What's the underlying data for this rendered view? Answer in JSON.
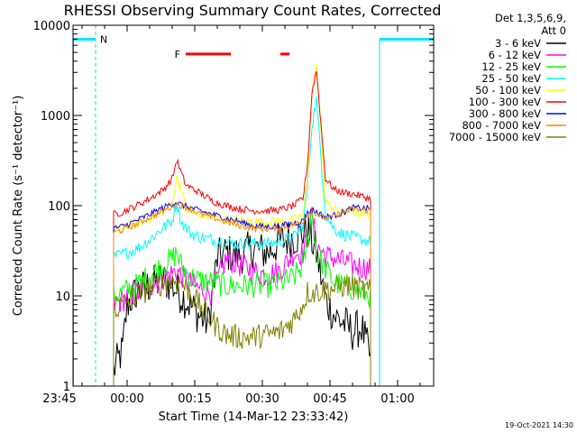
{
  "chart_data": {
    "type": "line",
    "title": "RHESSI Observing Summary Count Rates, Corrected",
    "xlabel": "Start Time (14-Mar-12 23:33:42)",
    "ylabel": "Corrected Count Rate (s⁻¹ detector⁻¹)",
    "yscale": "log",
    "ylim": [
      1,
      10000
    ],
    "xlim_minutes": [
      -12,
      68
    ],
    "x_tick_labels": [
      "23:45",
      "00:00",
      "00:15",
      "00:30",
      "00:45",
      "01:00"
    ],
    "x_tick_minutes": [
      -15,
      0,
      15,
      30,
      45,
      60
    ],
    "y_tick_labels": [
      "1",
      "10",
      "100",
      "1000",
      "10000"
    ],
    "y_tick_values": [
      1,
      10,
      100,
      1000,
      10000
    ],
    "legend_header": [
      "Det 1,3,5,6,9,",
      "Att 0"
    ],
    "timestamp": "19-Oct-2021 14:30",
    "marker_N": "N",
    "marker_F": "F",
    "night_intervals_minutes": [
      [
        -12,
        -7
      ],
      [
        56,
        68
      ]
    ],
    "flare_bars_minutes": [
      [
        13,
        23
      ],
      [
        34,
        36
      ]
    ],
    "data_start_minutes": -3,
    "data_end_minutes": 54,
    "series": [
      {
        "name": "3 - 6 keV",
        "color": "#000000",
        "points": [
          [
            -3,
            1.5
          ],
          [
            -1,
            2.5
          ],
          [
            0,
            8
          ],
          [
            2,
            11
          ],
          [
            5,
            13
          ],
          [
            8,
            15
          ],
          [
            10,
            13
          ],
          [
            13,
            9
          ],
          [
            16,
            6
          ],
          [
            18,
            5
          ],
          [
            20,
            26
          ],
          [
            22,
            30
          ],
          [
            25,
            28
          ],
          [
            28,
            34
          ],
          [
            31,
            30
          ],
          [
            34,
            40
          ],
          [
            38,
            46
          ],
          [
            40,
            55
          ],
          [
            42,
            30
          ],
          [
            44,
            9
          ],
          [
            46,
            6
          ],
          [
            48,
            5
          ],
          [
            50,
            4
          ],
          [
            52,
            4.5
          ],
          [
            54,
            2
          ]
        ]
      },
      {
        "name": "6 - 12 keV",
        "color": "#ff00ff",
        "points": [
          [
            -3,
            8
          ],
          [
            -1,
            9
          ],
          [
            2,
            10.5
          ],
          [
            5,
            13
          ],
          [
            8,
            16
          ],
          [
            10,
            18
          ],
          [
            11,
            19
          ],
          [
            13,
            15
          ],
          [
            16,
            12
          ],
          [
            19,
            11
          ],
          [
            22,
            26
          ],
          [
            25,
            22
          ],
          [
            28,
            19
          ],
          [
            31,
            17
          ],
          [
            34,
            19
          ],
          [
            37,
            30
          ],
          [
            39,
            30
          ],
          [
            40,
            42
          ],
          [
            41,
            80
          ],
          [
            42,
            36
          ],
          [
            44,
            28
          ],
          [
            46,
            26
          ],
          [
            48,
            24
          ],
          [
            50,
            22
          ],
          [
            54,
            20
          ]
        ]
      },
      {
        "name": "12 - 25 keV",
        "color": "#00ff00",
        "points": [
          [
            -3,
            10
          ],
          [
            -1,
            11
          ],
          [
            2,
            13
          ],
          [
            5,
            17
          ],
          [
            8,
            22
          ],
          [
            10,
            26
          ],
          [
            11,
            30
          ],
          [
            12,
            22
          ],
          [
            14,
            16
          ],
          [
            16,
            15
          ],
          [
            19,
            14
          ],
          [
            22,
            13
          ],
          [
            25,
            13
          ],
          [
            28,
            13
          ],
          [
            31,
            13
          ],
          [
            34,
            14
          ],
          [
            37,
            16
          ],
          [
            39,
            22
          ],
          [
            40,
            40
          ],
          [
            41,
            85
          ],
          [
            42,
            30
          ],
          [
            44,
            20
          ],
          [
            46,
            14
          ],
          [
            48,
            13
          ],
          [
            50,
            12
          ],
          [
            54,
            10
          ]
        ]
      },
      {
        "name": "25 - 50 keV",
        "color": "#00ffff",
        "points": [
          [
            -3,
            27
          ],
          [
            -1,
            29
          ],
          [
            2,
            33
          ],
          [
            5,
            42
          ],
          [
            7,
            52
          ],
          [
            9,
            62
          ],
          [
            10,
            68
          ],
          [
            11,
            110
          ],
          [
            12,
            66
          ],
          [
            14,
            50
          ],
          [
            16,
            45
          ],
          [
            19,
            42
          ],
          [
            22,
            39
          ],
          [
            25,
            38
          ],
          [
            28,
            38
          ],
          [
            31,
            38
          ],
          [
            34,
            40
          ],
          [
            37,
            45
          ],
          [
            39,
            60
          ],
          [
            40,
            160
          ],
          [
            41,
            800
          ],
          [
            42,
            1500
          ],
          [
            43,
            350
          ],
          [
            44,
            80
          ],
          [
            46,
            55
          ],
          [
            48,
            48
          ],
          [
            50,
            45
          ],
          [
            54,
            40
          ]
        ]
      },
      {
        "name": "50 - 100 keV",
        "color": "#ffff00",
        "points": [
          [
            -3,
            53
          ],
          [
            -1,
            56
          ],
          [
            2,
            63
          ],
          [
            5,
            72
          ],
          [
            8,
            85
          ],
          [
            10,
            110
          ],
          [
            11,
            200
          ],
          [
            12,
            160
          ],
          [
            13,
            90
          ],
          [
            16,
            80
          ],
          [
            19,
            74
          ],
          [
            22,
            70
          ],
          [
            25,
            68
          ],
          [
            28,
            66
          ],
          [
            31,
            66
          ],
          [
            34,
            67
          ],
          [
            37,
            70
          ],
          [
            39,
            80
          ],
          [
            40,
            200
          ],
          [
            41,
            1800
          ],
          [
            42,
            3600
          ],
          [
            43,
            700
          ],
          [
            44,
            110
          ],
          [
            46,
            90
          ],
          [
            48,
            85
          ],
          [
            50,
            85
          ],
          [
            54,
            82
          ]
        ]
      },
      {
        "name": "100 - 300 keV",
        "color": "#ff0000",
        "points": [
          [
            -3,
            80
          ],
          [
            -1,
            85
          ],
          [
            2,
            100
          ],
          [
            5,
            120
          ],
          [
            8,
            150
          ],
          [
            10,
            200
          ],
          [
            11,
            320
          ],
          [
            12,
            230
          ],
          [
            13,
            170
          ],
          [
            16,
            140
          ],
          [
            19,
            112
          ],
          [
            22,
            100
          ],
          [
            25,
            92
          ],
          [
            28,
            88
          ],
          [
            31,
            88
          ],
          [
            34,
            90
          ],
          [
            37,
            100
          ],
          [
            39,
            120
          ],
          [
            40,
            280
          ],
          [
            41,
            1800
          ],
          [
            42,
            3200
          ],
          [
            43,
            800
          ],
          [
            44,
            200
          ],
          [
            46,
            150
          ],
          [
            48,
            140
          ],
          [
            50,
            135
          ],
          [
            54,
            120
          ]
        ]
      },
      {
        "name": "300 - 800 keV",
        "color": "#0000ff",
        "points": [
          [
            -3,
            56
          ],
          [
            -1,
            59
          ],
          [
            2,
            68
          ],
          [
            5,
            80
          ],
          [
            8,
            95
          ],
          [
            10,
            105
          ],
          [
            11,
            110
          ],
          [
            12,
            102
          ],
          [
            14,
            95
          ],
          [
            16,
            88
          ],
          [
            19,
            80
          ],
          [
            22,
            73
          ],
          [
            25,
            66
          ],
          [
            28,
            60
          ],
          [
            31,
            58
          ],
          [
            34,
            60
          ],
          [
            37,
            64
          ],
          [
            39,
            68
          ],
          [
            40,
            82
          ],
          [
            41,
            90
          ],
          [
            42,
            85
          ],
          [
            44,
            75
          ],
          [
            46,
            78
          ],
          [
            48,
            85
          ],
          [
            50,
            95
          ],
          [
            54,
            92
          ]
        ]
      },
      {
        "name": "800 - 7000 keV",
        "color": "#ff8000",
        "points": [
          [
            -3,
            50
          ],
          [
            -1,
            54
          ],
          [
            2,
            62
          ],
          [
            5,
            74
          ],
          [
            8,
            88
          ],
          [
            10,
            98
          ],
          [
            11,
            105
          ],
          [
            12,
            100
          ],
          [
            14,
            92
          ],
          [
            16,
            82
          ],
          [
            19,
            74
          ],
          [
            22,
            66
          ],
          [
            25,
            60
          ],
          [
            28,
            56
          ],
          [
            31,
            55
          ],
          [
            34,
            57
          ],
          [
            37,
            62
          ],
          [
            39,
            67
          ],
          [
            40,
            80
          ],
          [
            41,
            88
          ],
          [
            42,
            82
          ],
          [
            44,
            72
          ],
          [
            46,
            76
          ],
          [
            48,
            84
          ],
          [
            50,
            92
          ],
          [
            54,
            88
          ]
        ]
      },
      {
        "name": "7000 - 15000 keV",
        "color": "#808000",
        "points": [
          [
            -3,
            7
          ],
          [
            -1,
            8
          ],
          [
            2,
            10
          ],
          [
            5,
            12
          ],
          [
            8,
            14
          ],
          [
            10,
            15
          ],
          [
            12,
            14
          ],
          [
            14,
            11
          ],
          [
            16,
            8
          ],
          [
            18,
            6
          ],
          [
            20,
            4.5
          ],
          [
            22,
            3.7
          ],
          [
            25,
            3.5
          ],
          [
            28,
            3.5
          ],
          [
            31,
            3.7
          ],
          [
            34,
            4
          ],
          [
            37,
            5.5
          ],
          [
            39,
            8
          ],
          [
            40,
            11
          ],
          [
            42,
            11
          ],
          [
            44,
            12
          ],
          [
            46,
            12
          ],
          [
            48,
            13
          ],
          [
            50,
            13
          ],
          [
            54,
            11
          ]
        ]
      }
    ]
  }
}
